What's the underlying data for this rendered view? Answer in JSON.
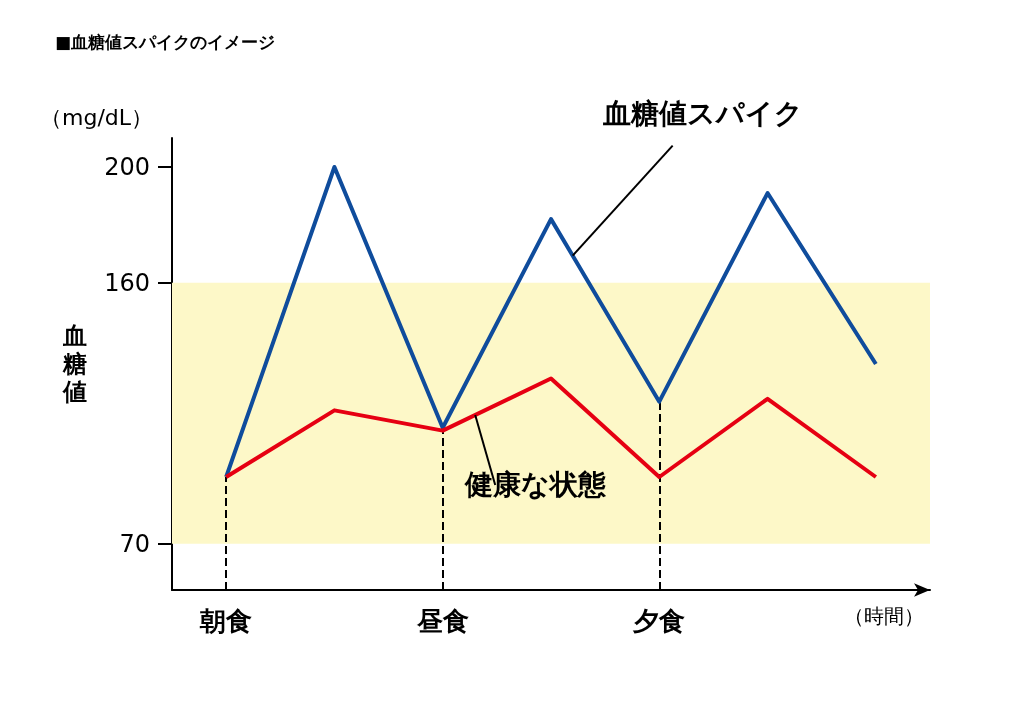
{
  "chart_data": {
    "type": "line",
    "title": "■血糖値スパイクのイメージ",
    "ylabel": "血糖値",
    "xlabel": "（時間）",
    "annotations": [
      "（mg/dL）"
    ],
    "categories": [
      "朝食",
      null,
      "昼食",
      null,
      "夕食",
      null,
      null
    ],
    "series": [
      {
        "name": "血糖値スパイク",
        "color": "#0f4c9c",
        "values": [
          93,
          200,
          110,
          182,
          119,
          191,
          132
        ]
      },
      {
        "name": "健康な状態",
        "color": "#e60012",
        "values": [
          93,
          116,
          109,
          127,
          93,
          120,
          93
        ]
      }
    ],
    "ylim": [
      54,
      210
    ],
    "yticks": [
      70,
      160,
      200
    ],
    "bands": [
      {
        "axis": "y",
        "from": 70,
        "to": 160,
        "color": "#fdf8c8"
      }
    ],
    "ref_lines": [
      {
        "axis": "x",
        "value": "朝食",
        "line_style": "dashed"
      },
      {
        "axis": "x",
        "value": "昼食",
        "line_style": "dashed"
      },
      {
        "axis": "x",
        "value": "夕食",
        "line_style": "dashed"
      }
    ],
    "grid": false,
    "legend": false,
    "marker": "none",
    "line_style": "solid"
  }
}
